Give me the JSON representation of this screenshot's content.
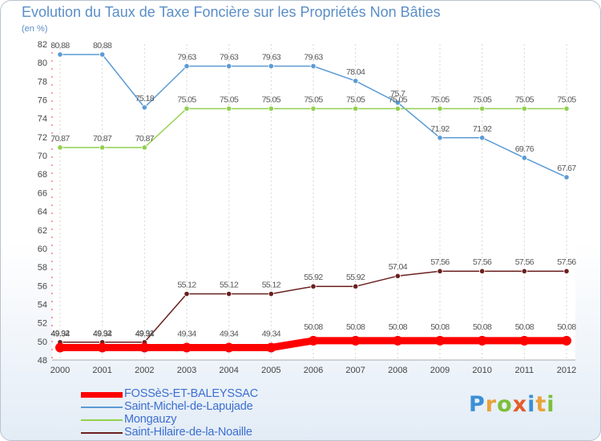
{
  "title": "Evolution du Taux de Taxe Foncière sur les Propriétés Non Bâties",
  "subtitle": "(en %)",
  "logo": {
    "text": "Proxiti",
    "letters": [
      {
        "ch": "P",
        "color": "#3b8fd6"
      },
      {
        "ch": "r",
        "color": "#e8a23a"
      },
      {
        "ch": "o",
        "color": "#7cbf3a"
      },
      {
        "ch": "x",
        "color": "#e35d2b"
      },
      {
        "ch": "i",
        "color": "#3b8fd6"
      },
      {
        "ch": "t",
        "color": "#e8a23a"
      },
      {
        "ch": "i",
        "color": "#7cbf3a"
      }
    ]
  },
  "chart_data": {
    "type": "line",
    "title": "Evolution du Taux de Taxe Foncière sur les Propriétés Non Bâties",
    "ylabel": "(en %)",
    "xlabel": "",
    "x": [
      "2000",
      "2001",
      "2002",
      "2003",
      "2004",
      "2005",
      "2006",
      "2007",
      "2008",
      "2009",
      "2010",
      "2011",
      "2012"
    ],
    "ylim": [
      48,
      82
    ],
    "yticks": [
      48,
      50,
      52,
      54,
      56,
      58,
      60,
      62,
      64,
      66,
      68,
      70,
      72,
      74,
      76,
      78,
      80,
      82
    ],
    "legend_position": "bottom-left",
    "series": [
      {
        "name": "FOSSèS-ET-BALEYSSAC",
        "color": "#ff0000",
        "values": [
          49.34,
          49.34,
          49.34,
          49.34,
          49.34,
          49.34,
          50.08,
          50.08,
          50.08,
          50.08,
          50.08,
          50.08,
          50.08
        ],
        "labels": [
          "49.34",
          "49.34",
          "49.34",
          "49.34",
          "49.34",
          "49.34",
          "50.08",
          "50.08",
          "50.08",
          "50.08",
          "50.08",
          "50.08",
          "50.08"
        ]
      },
      {
        "name": "Saint-Michel-de-Lapujade",
        "color": "#5b9bd5",
        "values": [
          80.88,
          80.88,
          75.18,
          79.63,
          79.63,
          79.63,
          79.63,
          78.04,
          75.7,
          71.92,
          71.92,
          69.76,
          67.67
        ],
        "labels": [
          "80.88",
          "80.88",
          "75.18",
          "79.63",
          "79.63",
          "79.63",
          "79.63",
          "78.04",
          "75.7",
          "71.92",
          "71.92",
          "69.76",
          "67.67"
        ]
      },
      {
        "name": "Mongauzy",
        "color": "#92d050",
        "values": [
          70.87,
          70.87,
          70.87,
          75.05,
          75.05,
          75.05,
          75.05,
          75.05,
          75.05,
          75.05,
          75.05,
          75.05,
          75.05
        ],
        "labels": [
          "70.87",
          "70.87",
          "70.87",
          "75.05",
          "75.05",
          "75.05",
          "75.05",
          "75.05",
          "75.05",
          "75.05",
          "75.05",
          "75.05",
          "75.05"
        ]
      },
      {
        "name": "Saint-Hilaire-de-la-Noaille",
        "color": "#6b1f1f",
        "values": [
          49.92,
          49.92,
          49.92,
          55.12,
          55.12,
          55.12,
          55.92,
          55.92,
          57.04,
          57.56,
          57.56,
          57.56,
          57.56
        ],
        "labels": [
          "49.92",
          "49.92",
          "49.92",
          "55.12",
          "55.12",
          "55.12",
          "55.92",
          "55.92",
          "57.04",
          "57.56",
          "57.56",
          "57.56",
          "57.56"
        ]
      }
    ]
  }
}
